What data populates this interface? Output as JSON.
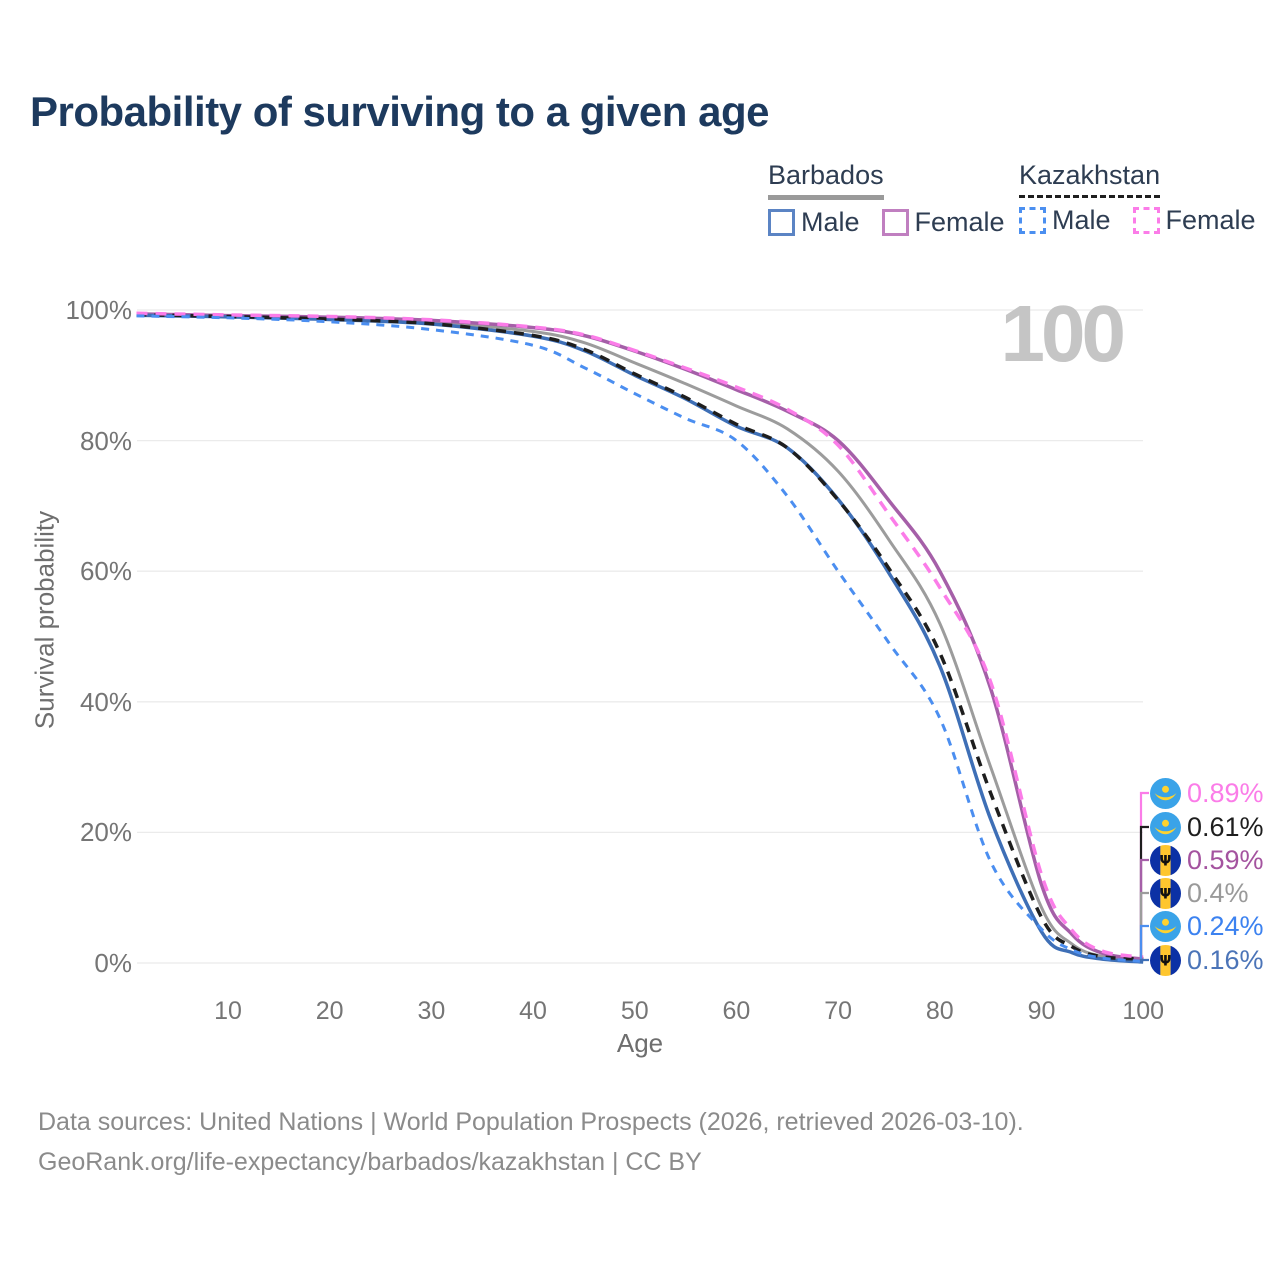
{
  "title": "Probability of surviving to a given age",
  "legend": {
    "groups": [
      {
        "country": "Barbados",
        "line_style": "solid",
        "line_color": "#9a9a9a",
        "items": [
          {
            "label": "Male",
            "color": "#5b84c4",
            "dashed": false
          },
          {
            "label": "Female",
            "color": "#c07fc0",
            "dashed": false
          }
        ]
      },
      {
        "country": "Kazakhstan",
        "line_style": "dashed",
        "line_color": "#1f1f1f",
        "items": [
          {
            "label": "Male",
            "color": "#4b8ff0",
            "dashed": true
          },
          {
            "label": "Female",
            "color": "#fb7ce8",
            "dashed": true
          }
        ]
      }
    ]
  },
  "chart_data": {
    "type": "line",
    "title": "Probability of surviving to a given age",
    "xlabel": "Age",
    "ylabel": "Survival probability",
    "watermark": "100",
    "x_ticks": [
      10,
      20,
      30,
      40,
      50,
      60,
      70,
      80,
      90,
      100
    ],
    "y_ticks": [
      "0%",
      "20%",
      "40%",
      "60%",
      "80%",
      "100%"
    ],
    "xlim": [
      1,
      100
    ],
    "ylim": [
      0,
      100
    ],
    "grid": "horizontal-only",
    "legend_position": "top-right",
    "ages": [
      1,
      10,
      20,
      30,
      40,
      45,
      50,
      55,
      60,
      65,
      70,
      75,
      80,
      85,
      90,
      93,
      96,
      100
    ],
    "series": [
      {
        "id": "barbados-total",
        "name": "Barbados — All",
        "country": "Barbados",
        "flag": "barbados",
        "color": "#9c9c9c",
        "dash": null,
        "width": 3,
        "end_label": "0.4%",
        "end_label_color": "#9a9a9a",
        "values": [
          99.3,
          99.0,
          98.7,
          98.1,
          96.7,
          95.0,
          91.9,
          88.7,
          85.3,
          81.8,
          75.3,
          64.8,
          52.0,
          30.0,
          8.5,
          2.9,
          1.0,
          0.4
        ]
      },
      {
        "id": "barbados-female",
        "name": "Barbados Female",
        "country": "Barbados",
        "flag": "barbados",
        "color": "#a55fa8",
        "dash": null,
        "width": 3.5,
        "end_label": "0.59%",
        "end_label_color": "#a4539f",
        "values": [
          99.4,
          99.15,
          98.9,
          98.4,
          97.3,
          96.1,
          93.7,
          90.9,
          87.8,
          84.5,
          80.0,
          70.8,
          60.0,
          42.0,
          12.0,
          4.4,
          1.5,
          0.59
        ]
      },
      {
        "id": "barbados-male",
        "name": "Barbados Male",
        "country": "Barbados",
        "flag": "barbados",
        "color": "#3e6fb6",
        "dash": null,
        "width": 3.5,
        "end_label": "0.16%",
        "end_label_color": "#4b74b8",
        "values": [
          99.2,
          98.95,
          98.55,
          97.85,
          96.0,
          93.8,
          90.0,
          86.4,
          82.2,
          78.9,
          71.0,
          59.7,
          45.5,
          22.0,
          4.8,
          1.6,
          0.6,
          0.16
        ]
      },
      {
        "id": "kazakhstan-total",
        "name": "Kazakhstan — All",
        "country": "Kazakhstan",
        "flag": "kazakhstan",
        "color": "#1e1e1e",
        "dash": "10 8",
        "width": 3.5,
        "end_label": "0.61%",
        "end_label_color": "#1e1e1e",
        "values": [
          99.3,
          99.0,
          98.6,
          97.9,
          96.1,
          94.0,
          90.2,
          86.6,
          82.5,
          78.9,
          70.9,
          60.4,
          47.5,
          26.0,
          7.0,
          2.5,
          0.95,
          0.61
        ]
      },
      {
        "id": "kazakhstan-female",
        "name": "Kazakhstan Female",
        "country": "Kazakhstan",
        "flag": "kazakhstan",
        "color": "#fb7ce8",
        "dash": "11 8",
        "width": 3.5,
        "end_label": "0.89%",
        "end_label_color": "#fb7ce8",
        "values": [
          99.5,
          99.25,
          99.0,
          98.5,
          97.4,
          96.2,
          93.8,
          91.1,
          88.2,
          84.8,
          79.3,
          68.7,
          57.5,
          43.0,
          13.5,
          5.0,
          1.8,
          0.89
        ]
      },
      {
        "id": "kazakhstan-male",
        "name": "Kazakhstan Male",
        "country": "Kazakhstan",
        "flag": "kazakhstan",
        "color": "#4b8ef0",
        "dash": "8 7",
        "width": 3,
        "end_label": "0.24%",
        "end_label_color": "#3c82f0",
        "values": [
          99.1,
          98.8,
          98.2,
          97.0,
          94.6,
          91.2,
          87.2,
          83.4,
          80.0,
          71.5,
          60.0,
          49.0,
          37.5,
          15.5,
          5.2,
          2.0,
          0.75,
          0.24
        ]
      }
    ]
  },
  "footer": {
    "line1": "Data sources: United Nations | World Population Prospects (2026, retrieved 2026-03-10).",
    "line2": "GeoRank.org/life-expectancy/barbados/kazakhstan | CC BY"
  }
}
